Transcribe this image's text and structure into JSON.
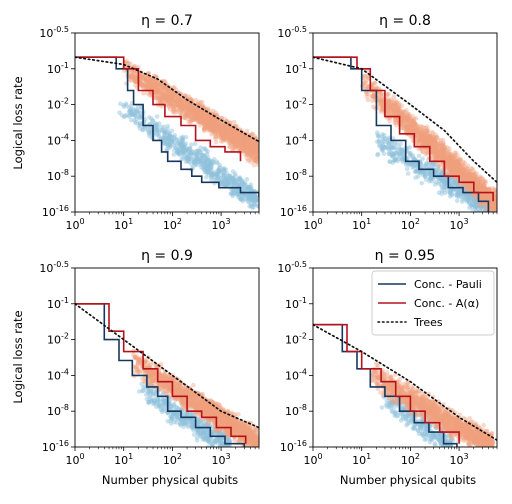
{
  "figure": {
    "ylabel": "Logical loss rate",
    "xlabel": "Number physical qubits"
  },
  "colors": {
    "pauli": "#17375e",
    "alpha": "#b5121b",
    "trees": "#111111",
    "scatter_pauli": "#8fc1dc",
    "scatter_alpha": "#f0a07e"
  },
  "legend": {
    "location": "top-right of last panel",
    "items": [
      {
        "key": "pauli",
        "label": "Conc. - Pauli",
        "style": "solid"
      },
      {
        "key": "alpha",
        "label": "Conc. - A(α)",
        "style": "solid"
      },
      {
        "key": "trees",
        "label": "Trees",
        "style": "dotted"
      }
    ]
  },
  "axes": {
    "x_ticks": [
      "10^0",
      "10^1",
      "10^2",
      "10^3"
    ],
    "y_ticks": [
      "10^-0.5",
      "10^-1",
      "10^-2",
      "10^-4",
      "10^-8",
      "10^-16"
    ],
    "x_scale": "log",
    "y_scale": "loglog",
    "xlim": [
      1,
      6000
    ],
    "ylim": [
      1e-16,
      0.316
    ]
  },
  "chart_data": [
    {
      "type": "line",
      "title": "η = 0.7",
      "series": [
        {
          "key": "pauli",
          "x": [
            1,
            7,
            12,
            16,
            25,
            40,
            60,
            80,
            150,
            250,
            400,
            900,
            2500,
            6000
          ],
          "y": [
            0.1585,
            0.1,
            0.03,
            0.01,
            0.001,
            0.0001,
            1e-05,
            1e-06,
            1e-07,
            1e-08,
            1e-09,
            1e-10,
            1e-11,
            1e-12
          ]
        },
        {
          "key": "alpha",
          "x": [
            1,
            10,
            20,
            40,
            70,
            150,
            300,
            600,
            1200,
            2500
          ],
          "y": [
            0.1585,
            0.1,
            0.03,
            0.01,
            0.003,
            0.001,
            0.0001,
            3e-05,
            1e-05,
            1e-06
          ]
        },
        {
          "key": "trees",
          "x": [
            1,
            10,
            50,
            200,
            1000,
            6000
          ],
          "y": [
            0.1585,
            0.12,
            0.06,
            0.015,
            0.002,
            8e-05
          ]
        }
      ],
      "scatter_pauli": {
        "x_range": [
          8,
          6000
        ],
        "y_at_start": 0.01,
        "y_at_end": 1e-13,
        "count": 650
      },
      "scatter_alpha": {
        "x_range": [
          10,
          6000
        ],
        "y_at_start": 0.1,
        "y_at_end": 1e-05,
        "count": 1700
      }
    },
    {
      "type": "line",
      "title": "η = 0.8",
      "series": [
        {
          "key": "pauli",
          "x": [
            1,
            6,
            10,
            20,
            40,
            80,
            150,
            300,
            600,
            1200,
            2500,
            4000
          ],
          "y": [
            0.1585,
            0.1,
            0.03,
            0.001,
            0.0001,
            1e-06,
            1e-07,
            1e-08,
            1e-10,
            1e-11,
            1e-13,
            1e-16
          ]
        },
        {
          "key": "alpha",
          "x": [
            1,
            8,
            15,
            30,
            60,
            120,
            250,
            500,
            1000,
            2000,
            5000
          ],
          "y": [
            0.1585,
            0.1,
            0.03,
            0.003,
            0.0003,
            3e-05,
            1e-06,
            1e-08,
            1e-09,
            1e-11,
            1e-13
          ]
        },
        {
          "key": "trees",
          "x": [
            1,
            10,
            100,
            500,
            2000,
            6000
          ],
          "y": [
            0.1585,
            0.1,
            0.01,
            0.0005,
            1e-06,
            1e-09
          ]
        }
      ],
      "scatter_pauli": {
        "x_range": [
          20,
          6000
        ],
        "y_at_start": 0.0001,
        "y_at_end": 1e-16,
        "count": 650
      },
      "scatter_alpha": {
        "x_range": [
          10,
          6000
        ],
        "y_at_start": 0.05,
        "y_at_end": 1e-14,
        "count": 1700
      }
    },
    {
      "type": "line",
      "title": "η = 0.9",
      "series": [
        {
          "key": "pauli",
          "x": [
            1,
            4,
            8,
            15,
            30,
            50,
            80,
            150,
            300,
            600,
            1200,
            3000
          ],
          "y": [
            0.1,
            0.01,
            0.001,
            0.0001,
            1e-05,
            1e-06,
            1e-08,
            1e-09,
            1e-11,
            1e-13,
            1e-15,
            1e-16
          ]
        },
        {
          "key": "alpha",
          "x": [
            1,
            5,
            10,
            25,
            50,
            100,
            200,
            400,
            800,
            1600,
            3200
          ],
          "y": [
            0.1,
            0.02,
            0.003,
            0.0003,
            3e-05,
            1e-06,
            1e-08,
            1e-09,
            1e-11,
            1e-13,
            1e-15
          ]
        },
        {
          "key": "trees",
          "x": [
            1,
            10,
            100,
            1000,
            6000
          ],
          "y": [
            0.1,
            0.01,
            0.0001,
            1e-08,
            1e-11
          ]
        }
      ],
      "scatter_pauli": {
        "x_range": [
          20,
          1500
        ],
        "y_at_start": 1e-05,
        "y_at_end": 1e-16,
        "count": 450
      },
      "scatter_alpha": {
        "x_range": [
          15,
          6000
        ],
        "y_at_start": 0.001,
        "y_at_end": 1e-15,
        "count": 1500
      }
    },
    {
      "type": "line",
      "title": "η = 0.95",
      "series": [
        {
          "key": "pauli",
          "x": [
            1,
            4,
            8,
            15,
            30,
            60,
            120,
            240,
            480,
            900
          ],
          "y": [
            0.0316,
            0.003,
            0.0003,
            1e-05,
            1e-06,
            1e-08,
            1e-10,
            1e-12,
            1e-15,
            1e-16
          ]
        },
        {
          "key": "alpha",
          "x": [
            1,
            5,
            10,
            25,
            50,
            100,
            200,
            400,
            1000
          ],
          "y": [
            0.0316,
            0.003,
            0.0003,
            3e-05,
            1e-06,
            1e-08,
            1e-10,
            1e-12,
            1e-15
          ]
        },
        {
          "key": "trees",
          "x": [
            1,
            10,
            100,
            1000,
            6000
          ],
          "y": [
            0.0316,
            0.003,
            3e-05,
            1e-09,
            1e-14
          ]
        }
      ],
      "scatter_pauli": {
        "x_range": [
          25,
          800
        ],
        "y_at_start": 1e-06,
        "y_at_end": 1e-16,
        "count": 300
      },
      "scatter_alpha": {
        "x_range": [
          15,
          5000
        ],
        "y_at_start": 0.0001,
        "y_at_end": 1e-16,
        "count": 1300
      }
    }
  ]
}
